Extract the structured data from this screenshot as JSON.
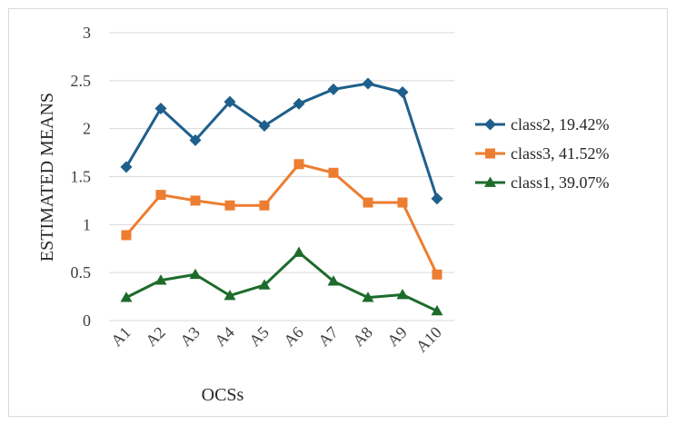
{
  "chart_data": {
    "type": "line",
    "title": "",
    "xlabel": "OCSs",
    "ylabel": "ESTIMATED MEANS",
    "categories": [
      "A1",
      "A2",
      "A3",
      "A4",
      "A5",
      "A6",
      "A7",
      "A8",
      "A9",
      "A10"
    ],
    "ylim": [
      0,
      3
    ],
    "yticks": [
      "0",
      "0.5",
      "1",
      "1.5",
      "2",
      "2.5",
      "3"
    ],
    "grid": "horizontal",
    "legend_position": "right",
    "series": [
      {
        "name": "class2, 19.42%",
        "color": "#1f5f8b",
        "marker": "diamond",
        "values": [
          1.6,
          2.21,
          1.88,
          2.28,
          2.03,
          2.26,
          2.41,
          2.47,
          2.38,
          1.27
        ]
      },
      {
        "name": "class3, 41.52%",
        "color": "#ed7d31",
        "marker": "square",
        "values": [
          0.89,
          1.31,
          1.25,
          1.2,
          1.2,
          1.63,
          1.54,
          1.23,
          1.23,
          0.48
        ]
      },
      {
        "name": "class1, 39.07%",
        "color": "#1e6b2c",
        "marker": "triangle",
        "values": [
          0.24,
          0.42,
          0.48,
          0.26,
          0.37,
          0.71,
          0.41,
          0.24,
          0.27,
          0.1
        ]
      }
    ]
  }
}
